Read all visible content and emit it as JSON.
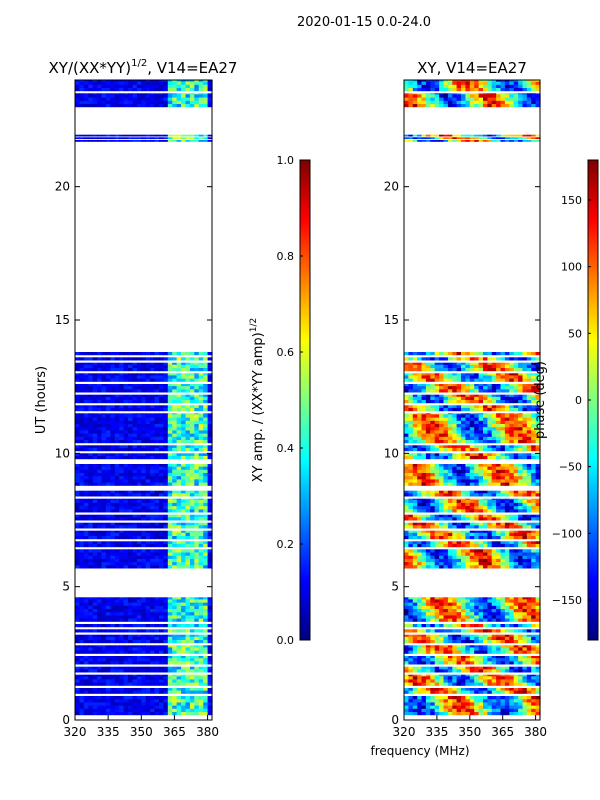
{
  "figure_title": "2020-01-15 0.0-24.0",
  "xlabel_shared": "frequency (MHz)",
  "colors": {
    "axis": "#000000",
    "gap": "#ffffff",
    "jet_stops": [
      "#00007f",
      "#0000ff",
      "#007fff",
      "#00ffff",
      "#7fff7f",
      "#ffff00",
      "#ff7f00",
      "#ff0000",
      "#7f0000"
    ]
  },
  "chart_data": [
    {
      "type": "heatmap",
      "name": "amplitude-ratio",
      "title_main": "XY/(XX*YY)",
      "title_sup": "1/2",
      "title_rest": ", V14=EA27",
      "xlabel": "",
      "ylabel": "UT (hours)",
      "xlim": [
        320,
        382
      ],
      "ylim": [
        0,
        24
      ],
      "xticks": [
        320,
        335,
        350,
        365,
        380
      ],
      "yticks": [
        0,
        5,
        10,
        15,
        20
      ],
      "colorbar": {
        "label_main": "XY amp. / (XX*YY amp)",
        "label_sup": "1/2",
        "range": [
          0.0,
          1.0
        ],
        "ticks": [
          "0.0",
          "0.2",
          "0.4",
          "0.6",
          "0.8",
          "1.0"
        ]
      }
    },
    {
      "type": "heatmap",
      "name": "xy-phase",
      "title_main": "XY, V14=EA27",
      "title_sup": "",
      "title_rest": "",
      "xlabel": "frequency (MHz)",
      "ylabel": "",
      "xlim": [
        320,
        382
      ],
      "ylim": [
        0,
        24
      ],
      "xticks": [
        320,
        335,
        350,
        365,
        380
      ],
      "yticks": [
        0,
        5,
        10,
        15,
        20
      ],
      "colorbar": {
        "label_main": "phase (deg)",
        "label_sup": "",
        "range": [
          -180,
          180
        ],
        "ticks": [
          "−150",
          "−100",
          "−50",
          "0",
          "50",
          "100",
          "150"
        ]
      }
    }
  ],
  "data_coverage_hours": [
    [
      0.2,
      0.9
    ],
    [
      1.0,
      1.2
    ],
    [
      1.3,
      1.7
    ],
    [
      1.8,
      2.0
    ],
    [
      2.1,
      2.4
    ],
    [
      2.5,
      2.8
    ],
    [
      2.9,
      3.2
    ],
    [
      3.3,
      3.4
    ],
    [
      3.5,
      3.6
    ],
    [
      3.7,
      4.6
    ],
    [
      5.7,
      6.4
    ],
    [
      6.5,
      6.7
    ],
    [
      6.8,
      7.1
    ],
    [
      7.2,
      7.4
    ],
    [
      7.5,
      7.7
    ],
    [
      7.8,
      8.3
    ],
    [
      8.4,
      8.6
    ],
    [
      8.8,
      9.6
    ],
    [
      9.8,
      10.0
    ],
    [
      10.1,
      10.3
    ],
    [
      10.4,
      11.5
    ],
    [
      11.6,
      11.8
    ],
    [
      11.9,
      12.2
    ],
    [
      12.3,
      12.6
    ],
    [
      12.7,
      13.0
    ],
    [
      13.1,
      13.4
    ],
    [
      13.5,
      13.6
    ],
    [
      13.7,
      13.8
    ],
    [
      21.7,
      21.75
    ],
    [
      21.8,
      21.85
    ],
    [
      21.9,
      21.95
    ],
    [
      23.0,
      23.5
    ],
    [
      23.6,
      24.0
    ]
  ]
}
